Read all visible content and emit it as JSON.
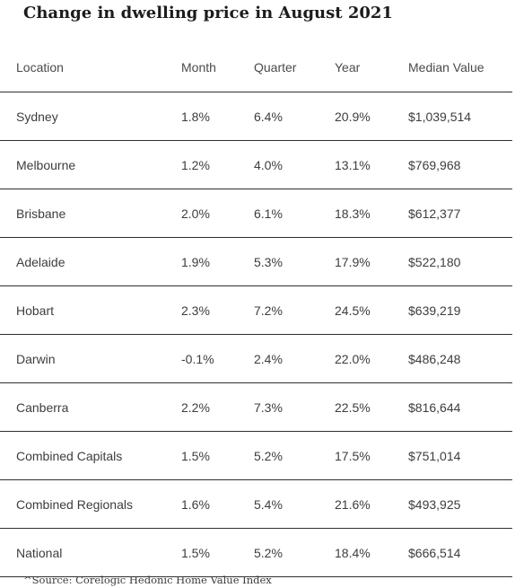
{
  "title": "Change in dwelling price in August 2021",
  "table": {
    "headers": {
      "location": "Location",
      "month": "Month",
      "quarter": "Quarter",
      "year": "Year",
      "median": "Median Value"
    },
    "rows": [
      {
        "location": "Sydney",
        "month": "1.8%",
        "quarter": "6.4%",
        "year": "20.9%",
        "median": "$1,039,514"
      },
      {
        "location": "Melbourne",
        "month": "1.2%",
        "quarter": "4.0%",
        "year": "13.1%",
        "median": "$769,968"
      },
      {
        "location": "Brisbane",
        "month": "2.0%",
        "quarter": "6.1%",
        "year": "18.3%",
        "median": "$612,377"
      },
      {
        "location": "Adelaide",
        "month": "1.9%",
        "quarter": "5.3%",
        "year": "17.9%",
        "median": "$522,180"
      },
      {
        "location": "Hobart",
        "month": "2.3%",
        "quarter": "7.2%",
        "year": "24.5%",
        "median": "$639,219"
      },
      {
        "location": "Darwin",
        "month": "-0.1%",
        "quarter": "2.4%",
        "year": "22.0%",
        "median": "$486,248"
      },
      {
        "location": "Canberra",
        "month": "2.2%",
        "quarter": "7.3%",
        "year": "22.5%",
        "median": "$816,644"
      },
      {
        "location": "Combined Capitals",
        "month": "1.5%",
        "quarter": "5.2%",
        "year": "17.5%",
        "median": "$751,014"
      },
      {
        "location": "Combined Regionals",
        "month": "1.6%",
        "quarter": "5.4%",
        "year": "21.6%",
        "median": "$493,925"
      },
      {
        "location": "National",
        "month": "1.5%",
        "quarter": "5.2%",
        "year": "18.4%",
        "median": "$666,514"
      }
    ]
  },
  "source": "^Source: Corelogic Hedonic Home Value Index"
}
